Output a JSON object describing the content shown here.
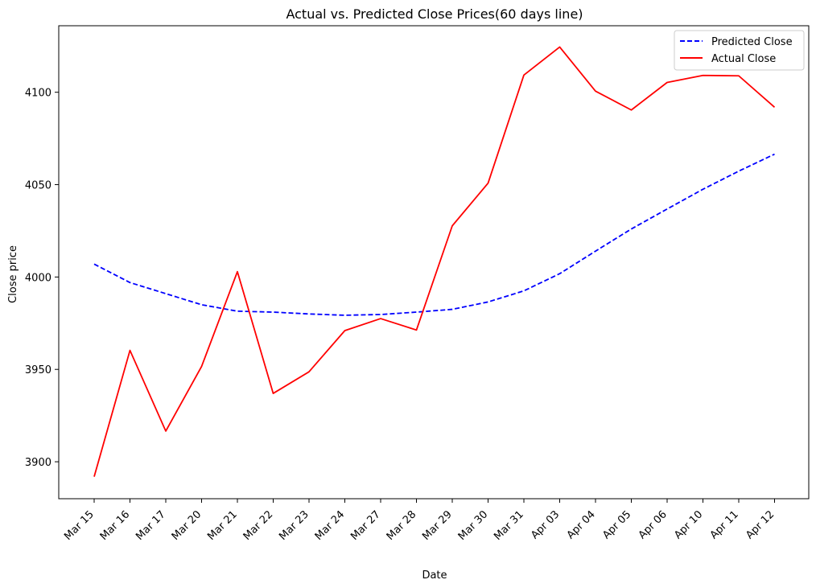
{
  "chart_data": {
    "type": "line",
    "title": "Actual vs. Predicted Close Prices(60 days line)",
    "xlabel": "Date",
    "ylabel": "Close price",
    "categories": [
      "Mar 15",
      "Mar 16",
      "Mar 17",
      "Mar 20",
      "Mar 21",
      "Mar 22",
      "Mar 23",
      "Mar 24",
      "Mar 27",
      "Mar 28",
      "Mar 29",
      "Mar 30",
      "Mar 31",
      "Apr 03",
      "Apr 04",
      "Apr 05",
      "Apr 06",
      "Apr 10",
      "Apr 11",
      "Apr 12"
    ],
    "yticks": [
      3900,
      3950,
      4000,
      4050,
      4100
    ],
    "ylim": [
      3880,
      4136
    ],
    "grid": false,
    "legend_position": "top-right",
    "series": [
      {
        "name": "Predicted Close",
        "color": "#0000ff",
        "style": "dashed",
        "values": [
          4007,
          3997,
          3991,
          3985,
          3981.5,
          3981,
          3980,
          3979.3,
          3979.7,
          3981,
          3982.5,
          3986.5,
          3992.5,
          4001.8,
          4014,
          4026,
          4036.8,
          4047.5,
          4057.3,
          4066.5
        ]
      },
      {
        "name": "Actual Close",
        "color": "#ff0000",
        "style": "solid",
        "values": [
          3891.9,
          3960.3,
          3916.6,
          3951.6,
          4002.9,
          3937,
          3948.7,
          3971,
          3977.5,
          3971.3,
          4027.7,
          4050.8,
          4109.3,
          4124.5,
          4100.6,
          4090.4,
          4105.3,
          4109.1,
          4108.9,
          4091.9
        ]
      }
    ]
  }
}
